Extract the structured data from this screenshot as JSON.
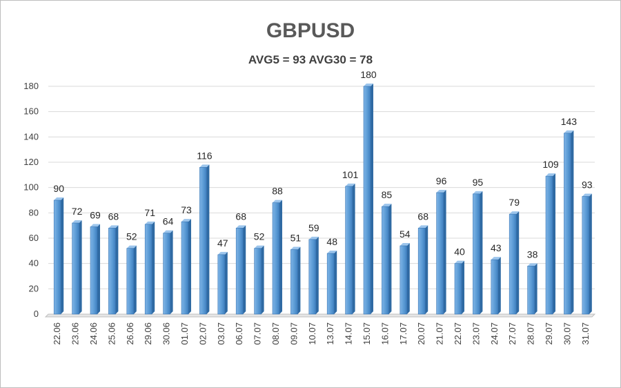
{
  "chart_data": {
    "type": "bar",
    "title": "GBPUSD",
    "subtitle": "AVG5 = 93 AVG30 = 78",
    "categories": [
      "22.06",
      "23.06",
      "24.06",
      "25.06",
      "26.06",
      "29.06",
      "30.06",
      "01.07",
      "02.07",
      "03.07",
      "06.07",
      "07.07",
      "08.07",
      "09.07",
      "10.07",
      "13.07",
      "14.07",
      "15.07",
      "16.07",
      "17.07",
      "20.07",
      "21.07",
      "22.07",
      "23.07",
      "24.07",
      "27.07",
      "28.07",
      "29.07",
      "30.07",
      "31.07"
    ],
    "values": [
      90,
      72,
      69,
      68,
      52,
      71,
      64,
      73,
      116,
      47,
      68,
      52,
      88,
      51,
      59,
      48,
      101,
      180,
      85,
      54,
      68,
      96,
      40,
      95,
      43,
      79,
      38,
      109,
      143,
      93
    ],
    "ylim": [
      0,
      180
    ],
    "yticks": [
      "0",
      "20",
      "40",
      "60",
      "80",
      "100",
      "120",
      "140",
      "160",
      "180"
    ],
    "grid": true,
    "legend": "none",
    "bar_color": "#5b9bd5"
  }
}
